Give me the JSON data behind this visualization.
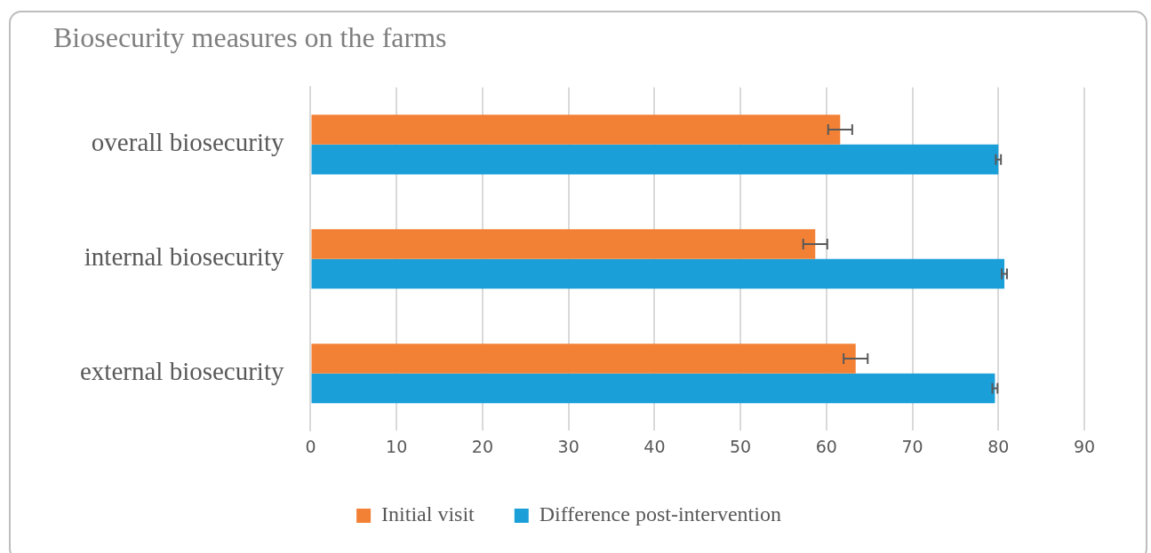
{
  "chart_data": {
    "type": "bar",
    "orientation": "horizontal",
    "title": "Biosecurity measures on the farms",
    "categories": [
      "overall biosecurity",
      "internal biosecurity",
      "external biosecurity"
    ],
    "series": [
      {
        "name": "Initial visit",
        "color": "#f38135",
        "values": [
          61.6,
          58.7,
          63.4
        ],
        "errors": [
          1.4,
          1.4,
          1.4
        ]
      },
      {
        "name": "Difference post-intervention",
        "color": "#1b9fd9",
        "values": [
          80.0,
          80.7,
          79.6
        ],
        "errors": [
          0.3,
          0.3,
          0.3
        ]
      }
    ],
    "xlim": [
      0,
      90
    ],
    "xticks": [
      0,
      10,
      20,
      30,
      40,
      50,
      60,
      70,
      80,
      90
    ],
    "grid": "x",
    "legend": "bottom"
  }
}
